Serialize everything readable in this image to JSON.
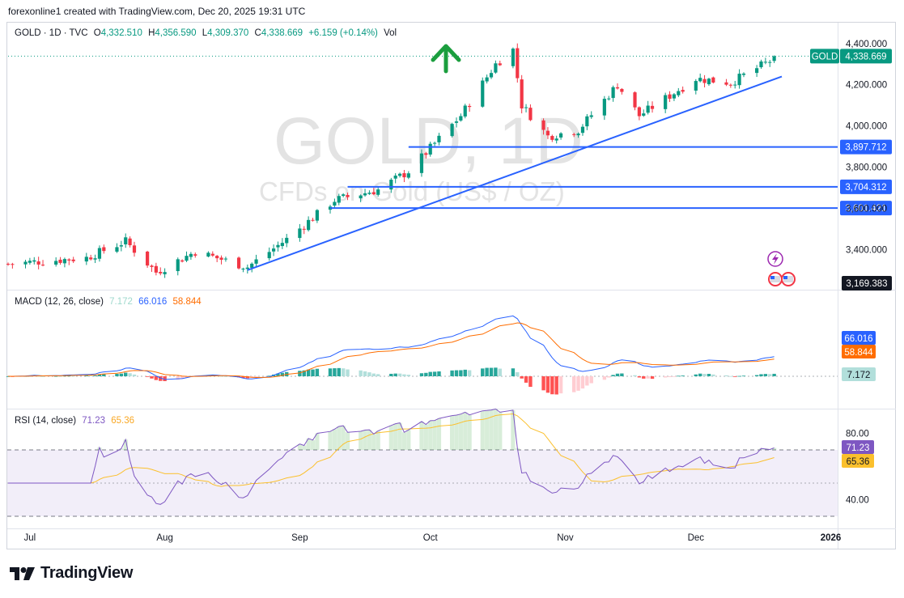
{
  "header": {
    "text": "forexonline1 created with TradingView.com, Dec 20, 2025 19:31 UTC"
  },
  "legend": {
    "symbol": "GOLD · 1D · TVC",
    "o_label": "O",
    "o_value": "4,332.510",
    "h_label": "H",
    "h_value": "4,356.590",
    "l_label": "L",
    "l_value": "4,309.370",
    "c_label": "C",
    "c_value": "4,338.669",
    "change": "+6.159 (+0.14%)",
    "vol": "Vol"
  },
  "watermark": {
    "title": "GOLD, 1D",
    "subtitle": "CFDs on Gold (US$ / OZ)"
  },
  "macd_legend": {
    "label": "MACD (12, 26, close)",
    "hist": "7.172",
    "macd": "66.016",
    "signal": "58.844"
  },
  "rsi_legend": {
    "label": "RSI (14, close)",
    "rsi": "71.23",
    "ma": "65.36"
  },
  "brand": {
    "name": "TradingView"
  },
  "colors": {
    "up": "#089981",
    "down": "#f23645",
    "trendline": "#2962ff",
    "macd": "#2962ff",
    "signal": "#ff6d00",
    "rsi": "#7e57c2",
    "rsi_ma": "#fbc02d",
    "arrow": "#1b9e3e"
  },
  "chart_data": [
    {
      "type": "candlestick",
      "title": "GOLD · 1D · TVC",
      "x_labels": [
        "Jul",
        "Aug",
        "Sep",
        "Oct",
        "Nov",
        "Dec",
        "2026"
      ],
      "y_ticks": [
        "4,400.000",
        "4,200.000",
        "4,000.000",
        "3,800.000",
        "3,600.000",
        "3,400.000"
      ],
      "ylim": [
        3150,
        4470
      ],
      "price_tag": {
        "symbol": "GOLD",
        "value": "4,338.669"
      },
      "horizontal_levels": [
        {
          "label": "3,897.712",
          "value": 3897.712
        },
        {
          "label": "3,704.312",
          "value": 3704.312
        },
        {
          "label": "3,601.421",
          "value": 3601.421
        }
      ],
      "extra_axis_label": "3,169.383",
      "anchor_points": [
        {
          "date": "2025-06-26",
          "price": 3330
        },
        {
          "date": "2025-07-14",
          "price": 3360
        },
        {
          "date": "2025-07-23",
          "price": 3440
        },
        {
          "date": "2025-07-30",
          "price": 3290
        },
        {
          "date": "2025-08-08",
          "price": 3390
        },
        {
          "date": "2025-08-20",
          "price": 3315
        },
        {
          "date": "2025-08-29",
          "price": 3450
        },
        {
          "date": "2025-09-09",
          "price": 3640
        },
        {
          "date": "2025-09-19",
          "price": 3690
        },
        {
          "date": "2025-09-26",
          "price": 3780
        },
        {
          "date": "2025-10-08",
          "price": 4050
        },
        {
          "date": "2025-10-16",
          "price": 4300
        },
        {
          "date": "2025-10-20",
          "price": 4370
        },
        {
          "date": "2025-10-22",
          "price": 4100
        },
        {
          "date": "2025-10-28",
          "price": 3950
        },
        {
          "date": "2025-11-04",
          "price": 3980
        },
        {
          "date": "2025-11-13",
          "price": 4200
        },
        {
          "date": "2025-11-18",
          "price": 4050
        },
        {
          "date": "2025-12-01",
          "price": 4230
        },
        {
          "date": "2025-12-09",
          "price": 4210
        },
        {
          "date": "2025-12-20",
          "price": 4338.669
        }
      ]
    },
    {
      "type": "line",
      "title": "MACD (12, 26, close)",
      "series": [
        {
          "name": "MACD",
          "value": 66.016
        },
        {
          "name": "Signal",
          "value": 58.844
        },
        {
          "name": "Histogram",
          "value": 7.172
        }
      ],
      "axis_tags": [
        "66.016",
        "58.844",
        "7.172"
      ]
    },
    {
      "type": "line",
      "title": "RSI (14, close)",
      "series": [
        {
          "name": "RSI",
          "value": 71.23
        },
        {
          "name": "RSI-based MA",
          "value": 65.36
        }
      ],
      "y_ticks": [
        "80.00",
        "40.00"
      ],
      "band": [
        30,
        70
      ],
      "axis_tags": [
        "71.23",
        "65.36"
      ]
    }
  ]
}
